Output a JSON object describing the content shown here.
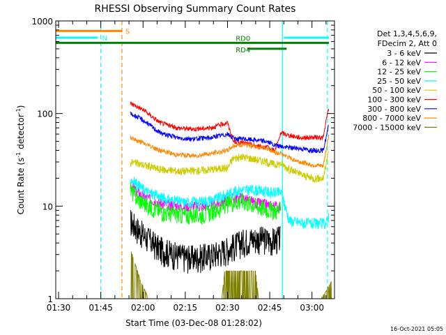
{
  "chart_data": {
    "type": "line",
    "title": "RHESSI Observing Summary Count Rates",
    "xlabel": "Start Time (03-Dec-08 01:28:02)",
    "ylabel_main": "Count Rate (s",
    "ylabel_sup1": "-1",
    "ylabel_mid": " detector",
    "ylabel_sup2": "-1",
    "ylabel_end": ")",
    "y_scale": "log",
    "ylim": [
      1,
      1000
    ],
    "xlim_minutes": [
      1,
      100
    ],
    "y_ticks": [
      {
        "value": 1,
        "label": "1"
      },
      {
        "value": 10,
        "label": "10"
      },
      {
        "value": 100,
        "label": "100"
      },
      {
        "value": 1000,
        "label": "1000"
      }
    ],
    "x_ticks": [
      {
        "value": 2,
        "label": "01:30"
      },
      {
        "value": 17,
        "label": "01:45"
      },
      {
        "value": 32,
        "label": "02:00"
      },
      {
        "value": 47,
        "label": "02:15"
      },
      {
        "value": 62,
        "label": "02:30"
      },
      {
        "value": 77,
        "label": "02:45"
      },
      {
        "value": 92,
        "label": "03:00"
      }
    ],
    "legend_header": [
      "Det 1,3,4,5,6,9,",
      "FDecim 2, Att 0"
    ],
    "legend_placement": "right",
    "series": [
      {
        "name": "3 - 6 keV",
        "color": "#000000",
        "x": [
          27.5,
          32,
          38,
          44,
          50,
          56,
          62,
          66,
          70,
          74,
          78,
          80,
          81
        ],
        "y": [
          7,
          5,
          3.5,
          3,
          2.8,
          3,
          3.5,
          4,
          4.5,
          4.5,
          4.3,
          4.5,
          4.5
        ]
      },
      {
        "name": "6 - 12 keV",
        "color": "#ff00ff",
        "x": [
          27.5,
          30,
          34,
          40,
          46,
          52,
          58,
          63,
          67,
          71,
          75,
          78,
          81
        ],
        "y": [
          17,
          14,
          12,
          10.5,
          10,
          10,
          10.5,
          12,
          12.5,
          11,
          10.5,
          10,
          10
        ]
      },
      {
        "name": "12 - 25 keV",
        "color": "#00ff00",
        "x": [
          27.5,
          30,
          34,
          40,
          46,
          52,
          58,
          63,
          67,
          71,
          75,
          78,
          81
        ],
        "y": [
          15,
          12,
          10,
          8.5,
          8,
          8,
          9,
          11,
          11.5,
          10.5,
          9.5,
          9,
          9
        ]
      },
      {
        "name": "25 - 50 keV",
        "color": "#00ffff",
        "x": [
          27.5,
          30,
          34,
          40,
          46,
          52,
          58,
          63,
          67,
          71,
          75,
          78,
          81,
          84,
          90,
          97,
          98
        ],
        "y": [
          20,
          17,
          14,
          12,
          11,
          11.2,
          12,
          14,
          15,
          15,
          14.5,
          14,
          14,
          7,
          6.5,
          6.5,
          8
        ]
      },
      {
        "name": "50 - 100 keV",
        "color": "#cccc00",
        "x": [
          27.5,
          32,
          38,
          44,
          50,
          56,
          62,
          64,
          68,
          72,
          76,
          79,
          81,
          84,
          88,
          92,
          96,
          98
        ],
        "y": [
          30,
          28,
          25,
          24,
          24,
          25,
          26,
          33,
          34,
          32,
          30,
          28,
          29,
          25,
          22,
          20,
          20,
          40
        ]
      },
      {
        "name": "100 - 300 keV",
        "color": "#ff0000",
        "x": [
          27.5,
          32,
          38,
          44,
          50,
          56,
          62,
          64,
          68,
          72,
          76,
          79,
          81,
          84,
          88,
          92,
          96,
          98
        ],
        "y": [
          130,
          110,
          80,
          70,
          68,
          70,
          80,
          50,
          48,
          45,
          43,
          40,
          62,
          58,
          55,
          55,
          55,
          120
        ]
      },
      {
        "name": "300 - 800 keV",
        "color": "#0000ff",
        "x": [
          27.5,
          32,
          38,
          44,
          50,
          56,
          62,
          64,
          68,
          72,
          76,
          79,
          81,
          84,
          88,
          92,
          96,
          98
        ],
        "y": [
          100,
          85,
          62,
          55,
          53,
          55,
          60,
          54,
          53,
          52,
          50,
          45,
          44,
          43,
          42,
          40,
          40,
          75
        ]
      },
      {
        "name": "800 - 7000 keV",
        "color": "#ff8800",
        "x": [
          27.5,
          32,
          38,
          44,
          50,
          56,
          62,
          64,
          68,
          72,
          76,
          79,
          81,
          84,
          88,
          92,
          96,
          98
        ],
        "y": [
          55,
          48,
          40,
          36,
          35,
          37,
          40,
          45,
          46,
          44,
          42,
          38,
          37,
          33,
          30,
          28,
          27,
          60
        ]
      },
      {
        "name": "7000 - 15000 keV",
        "color": "#808000",
        "x": [
          27.5,
          29,
          31,
          34,
          60,
          61,
          66,
          72,
          73,
          95,
          97,
          99
        ],
        "y": [
          3.5,
          2.5,
          1.6,
          1,
          1,
          2,
          2,
          2,
          1,
          1,
          1.2,
          1.6
        ]
      }
    ],
    "markers": {
      "attenuator_lines": [
        {
          "label": "S",
          "color": "#ff8800",
          "x": [
            1,
            24.5
          ],
          "y": 780
        }
      ],
      "night_lines": [
        {
          "label": "N",
          "color": "#00ffff",
          "x": [
            1,
            16
          ],
          "y": 660
        },
        {
          "label": "",
          "color": "#00ffff",
          "x": [
            82,
            98
          ],
          "y": 660
        }
      ],
      "decimation_lines": [
        {
          "label": "RD0",
          "color": "#008000",
          "x": [
            1,
            98
          ],
          "y": 580
        },
        {
          "label": "RD4",
          "color": "#008000",
          "x": [
            69,
            83
          ],
          "y": 500
        }
      ],
      "vlines": [
        {
          "x": 17,
          "color": "#00ffff",
          "style": "dashed"
        },
        {
          "x": 24.5,
          "color": "#ff8800",
          "style": "dashed"
        },
        {
          "x": 81.5,
          "color": "#00ffff",
          "style": "solid"
        },
        {
          "x": 97.5,
          "color": "#00ffff",
          "style": "dashed"
        }
      ]
    }
  },
  "footer_timestamp": "16-Oct-2021 05:05"
}
